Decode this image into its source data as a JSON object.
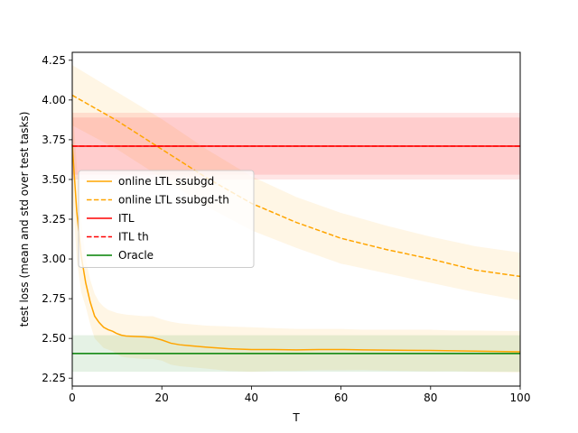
{
  "chart_data": {
    "type": "line",
    "title": "",
    "xlabel": "T",
    "ylabel": "test loss (mean and std over test tasks)",
    "xlim": [
      0,
      100
    ],
    "ylim": [
      2.2,
      4.3
    ],
    "xticks": [
      0,
      20,
      40,
      60,
      80,
      100
    ],
    "yticks": [
      2.25,
      2.5,
      2.75,
      3.0,
      3.25,
      3.5,
      3.75,
      4.0,
      4.25
    ],
    "ytick_labels": [
      "2.25",
      "2.50",
      "2.75",
      "3.00",
      "3.25",
      "3.50",
      "3.75",
      "4.00",
      "4.25"
    ],
    "grid": false,
    "legend_position": "center-left",
    "series": [
      {
        "name": "online LTL ssubgd",
        "color": "#ffa500",
        "linestyle": "solid",
        "band": true,
        "x": [
          0,
          1,
          2,
          3,
          4,
          5,
          6,
          7,
          8,
          9,
          10,
          11,
          12,
          14,
          16,
          18,
          20,
          22,
          24,
          26,
          28,
          30,
          35,
          40,
          45,
          50,
          55,
          60,
          65,
          70,
          75,
          80,
          85,
          90,
          95,
          100
        ],
        "y": [
          3.72,
          3.3,
          3.02,
          2.85,
          2.73,
          2.64,
          2.6,
          2.57,
          2.555,
          2.545,
          2.53,
          2.52,
          2.515,
          2.512,
          2.51,
          2.505,
          2.49,
          2.47,
          2.46,
          2.455,
          2.45,
          2.445,
          2.435,
          2.43,
          2.43,
          2.428,
          2.43,
          2.43,
          2.428,
          2.426,
          2.425,
          2.424,
          2.422,
          2.42,
          2.418,
          2.416
        ],
        "upper": [
          4.0,
          3.6,
          3.25,
          3.0,
          2.87,
          2.78,
          2.73,
          2.7,
          2.68,
          2.67,
          2.66,
          2.655,
          2.65,
          2.645,
          2.64,
          2.64,
          2.62,
          2.605,
          2.595,
          2.59,
          2.585,
          2.58,
          2.575,
          2.57,
          2.565,
          2.56,
          2.56,
          2.56,
          2.555,
          2.555,
          2.555,
          2.555,
          2.55,
          2.55,
          2.548,
          2.546
        ],
        "lower": [
          3.44,
          3.0,
          2.79,
          2.7,
          2.59,
          2.5,
          2.47,
          2.44,
          2.43,
          2.42,
          2.4,
          2.385,
          2.38,
          2.375,
          2.37,
          2.37,
          2.36,
          2.335,
          2.325,
          2.32,
          2.315,
          2.31,
          2.295,
          2.29,
          2.295,
          2.296,
          2.3,
          2.3,
          2.301,
          2.297,
          2.295,
          2.293,
          2.294,
          2.29,
          2.288,
          2.286
        ]
      },
      {
        "name": "online LTL ssubgd-th",
        "color": "#ffa500",
        "linestyle": "dashed",
        "band": true,
        "x": [
          0,
          10,
          20,
          30,
          40,
          50,
          60,
          70,
          80,
          90,
          100
        ],
        "y": [
          4.03,
          3.87,
          3.69,
          3.51,
          3.35,
          3.23,
          3.13,
          3.06,
          3.0,
          2.93,
          2.89
        ],
        "upper": [
          4.22,
          4.05,
          3.88,
          3.69,
          3.52,
          3.39,
          3.29,
          3.21,
          3.14,
          3.08,
          3.04
        ],
        "lower": [
          3.84,
          3.69,
          3.51,
          3.33,
          3.18,
          3.07,
          2.97,
          2.91,
          2.85,
          2.79,
          2.74
        ]
      },
      {
        "name": "ITL",
        "color": "#ff0000",
        "linestyle": "solid",
        "band": true,
        "x": [
          0,
          100
        ],
        "y": [
          3.71,
          3.71
        ],
        "upper": [
          3.89,
          3.89
        ],
        "lower": [
          3.53,
          3.53
        ]
      },
      {
        "name": "ITL th",
        "color": "#ff0000",
        "linestyle": "dashed",
        "band": true,
        "x": [
          0,
          100
        ],
        "y": [
          3.71,
          3.71
        ],
        "upper": [
          3.92,
          3.92
        ],
        "lower": [
          3.5,
          3.5
        ]
      },
      {
        "name": "Oracle",
        "color": "#008000",
        "linestyle": "solid",
        "band": true,
        "x": [
          0,
          100
        ],
        "y": [
          2.405,
          2.405
        ],
        "upper": [
          2.52,
          2.52
        ],
        "lower": [
          2.29,
          2.29
        ]
      }
    ]
  }
}
